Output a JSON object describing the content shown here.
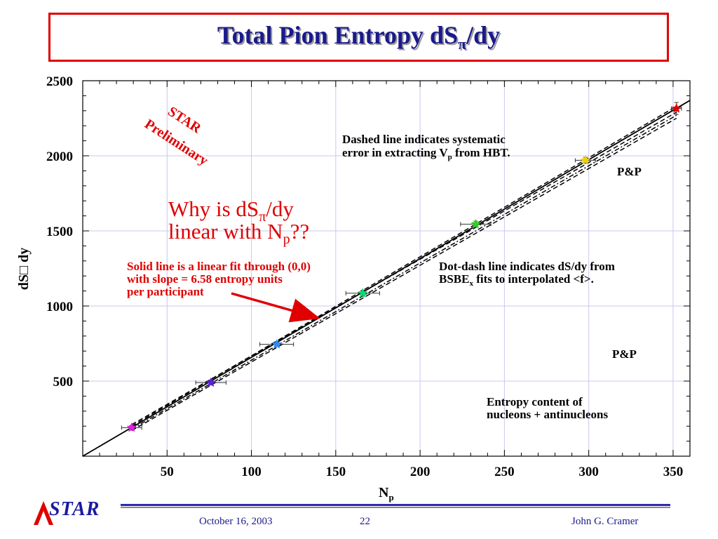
{
  "slide": {
    "title_main": "Total Pion Entropy dS",
    "title_sub": "π",
    "title_end": "/dy"
  },
  "footer": {
    "logo_text": "STAR",
    "date": "October 16, 2003",
    "page": "22",
    "author": "John G. Cramer"
  },
  "annotations": {
    "star_line1": "STAR",
    "star_line2": "Preliminary",
    "dashed_line1": "Dashed line indicates systematic",
    "dashed_line2a": "error in extracting V",
    "dashed_line2sub": "p",
    "dashed_line2b": " from HBT.",
    "pp_top": "P&P",
    "question_line1a": "Why is dS",
    "question_line1sub": "π",
    "question_line1b": "/dy",
    "question_line2a": "linear with N",
    "question_line2sub": "p",
    "question_line2b": "??",
    "solid_line1": "Solid line is a linear fit through (0,0)",
    "solid_line2": "with slope = 6.58 entropy units",
    "solid_line3": "per participant",
    "dotdash_line1": "Dot-dash line indicates dS/dy from",
    "dotdash_line2a": "BSBE",
    "dotdash_line2sub": "x",
    "dotdash_line2b": " fits to interpolated <f>.",
    "pp_bottom": "P&P",
    "entropy_line1": "Entropy content of",
    "entropy_line2": "nucleons + antinucleons"
  },
  "colors": {
    "title": "#1a1a8c",
    "frame": "#e00000",
    "annotation_red": "#e00000",
    "grid": "#c8c8ee"
  },
  "chart_data": {
    "type": "scatter",
    "title": "",
    "xlabel": "N",
    "xlabel_sub": "p",
    "ylabel": "dS□ dy",
    "xlim": [
      0,
      360
    ],
    "ylim": [
      0,
      2500
    ],
    "xticks": [
      50,
      100,
      150,
      200,
      250,
      300,
      350
    ],
    "yticks": [
      500,
      1000,
      1500,
      2000,
      2500
    ],
    "grid": true,
    "points": [
      {
        "x": 29,
        "y": 190,
        "xerr": 6,
        "yerr": 15,
        "color": "#e020e0"
      },
      {
        "x": 76,
        "y": 490,
        "xerr": 9,
        "yerr": 15,
        "color": "#5a20e0"
      },
      {
        "x": 115,
        "y": 745,
        "xerr": 10,
        "yerr": 15,
        "color": "#2a8cf0"
      },
      {
        "x": 166,
        "y": 1085,
        "xerr": 10,
        "yerr": 20,
        "color": "#00e070"
      },
      {
        "x": 233,
        "y": 1545,
        "xerr": 9,
        "yerr": 20,
        "color": "#30d020"
      },
      {
        "x": 298,
        "y": 1970,
        "xerr": 6,
        "yerr": 20,
        "color": "#f0d000"
      },
      {
        "x": 352,
        "y": 2315,
        "xerr": 3,
        "yerr": 40,
        "color": "#e00000"
      }
    ],
    "lines": [
      {
        "name": "linear fit",
        "style": "solid",
        "x": [
          0,
          360
        ],
        "y": [
          0,
          2368.8
        ]
      },
      {
        "name": "systematic upper",
        "style": "dashed",
        "x": [
          29,
          352
        ],
        "y": [
          210,
          2290
        ]
      },
      {
        "name": "systematic lower",
        "style": "dashed",
        "x": [
          29,
          352
        ],
        "y": [
          170,
          2250
        ]
      },
      {
        "name": "systematic upper 2",
        "style": "dashed",
        "x": [
          29,
          352
        ],
        "y": [
          200,
          2330
        ]
      },
      {
        "name": "BSBE interpolated",
        "style": "dotdash",
        "x": [
          29,
          352
        ],
        "y": [
          180,
          2270
        ]
      }
    ]
  }
}
